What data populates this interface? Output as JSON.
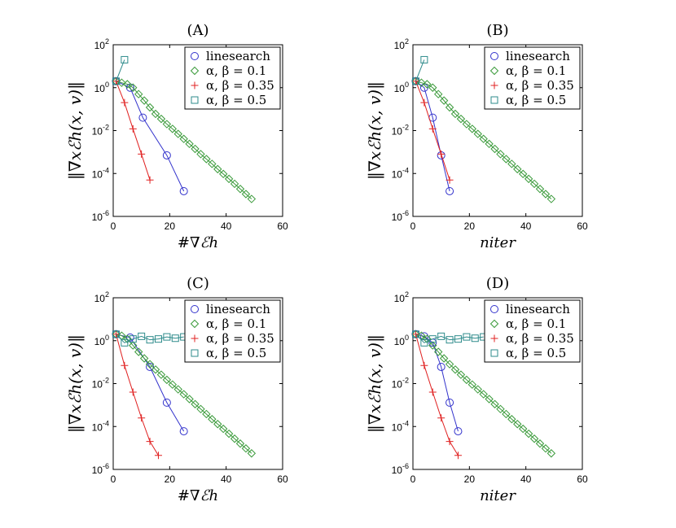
{
  "chart_data": [
    {
      "type": "line",
      "title": "(A)",
      "xlabel": "#∇ℰh",
      "ylabel": "‖∇xℰh(x, v)‖",
      "xlim": [
        0,
        60
      ],
      "ylim_log10": [
        -6,
        2
      ],
      "xticks": [
        "0",
        "20",
        "40",
        "60"
      ],
      "yticks": [
        "10^-6",
        "10^-4",
        "10^-2",
        "10^0",
        "10^2"
      ],
      "legend": "top-right",
      "series": [
        {
          "name": "linesearch",
          "marker": "circle",
          "color": "#3333cc",
          "x": [
            1,
            6,
            10.5,
            19,
            25
          ],
          "y": [
            2.0,
            1.0,
            0.04,
            0.0007,
            1.5e-05
          ]
        },
        {
          "name": "α, β = 0.1",
          "marker": "diamond",
          "color": "#3a9a3a",
          "x": [
            1,
            3,
            5,
            7,
            9,
            11,
            13,
            15,
            17,
            19,
            21,
            23,
            25,
            27,
            29,
            31,
            33,
            35,
            37,
            39,
            41,
            43,
            45,
            47,
            49
          ],
          "y": [
            2.0,
            1.7,
            1.45,
            1.0,
            0.5,
            0.25,
            0.12,
            0.06,
            0.035,
            0.02,
            0.012,
            0.007,
            0.0041,
            0.0024,
            0.0014,
            0.0008,
            0.00047,
            0.00028,
            0.00016,
            9.5e-05,
            5.6e-05,
            3.3e-05,
            1.9e-05,
            1.1e-05,
            6.5e-06
          ]
        },
        {
          "name": "α, β = 0.35",
          "marker": "plus",
          "color": "#e02020",
          "x": [
            1,
            4,
            7,
            10,
            13
          ],
          "y": [
            2.0,
            0.2,
            0.012,
            0.0008,
            5e-05
          ]
        },
        {
          "name": "α, β = 0.5",
          "marker": "square",
          "color": "#2e8b8b",
          "x": [
            1,
            4
          ],
          "y": [
            2.0,
            20
          ]
        }
      ]
    },
    {
      "type": "line",
      "title": "(B)",
      "xlabel": "niter",
      "ylabel": "‖∇xℰh(x, v)‖",
      "xlim": [
        0,
        60
      ],
      "ylim_log10": [
        -6,
        2
      ],
      "xticks": [
        "0",
        "20",
        "40",
        "60"
      ],
      "yticks": [
        "10^-6",
        "10^-4",
        "10^-2",
        "10^0",
        "10^2"
      ],
      "legend": "top-right",
      "series": [
        {
          "name": "linesearch",
          "marker": "circle",
          "color": "#3333cc",
          "x": [
            1,
            4,
            7,
            10,
            13
          ],
          "y": [
            2.0,
            1.0,
            0.04,
            0.0007,
            1.5e-05
          ]
        },
        {
          "name": "α, β = 0.1",
          "marker": "diamond",
          "color": "#3a9a3a",
          "x": [
            1,
            3,
            5,
            7,
            9,
            11,
            13,
            15,
            17,
            19,
            21,
            23,
            25,
            27,
            29,
            31,
            33,
            35,
            37,
            39,
            41,
            43,
            45,
            47,
            49
          ],
          "y": [
            2.0,
            1.7,
            1.45,
            1.0,
            0.5,
            0.25,
            0.12,
            0.06,
            0.035,
            0.02,
            0.012,
            0.007,
            0.0041,
            0.0024,
            0.0014,
            0.0008,
            0.00047,
            0.00028,
            0.00016,
            9.5e-05,
            5.6e-05,
            3.3e-05,
            1.9e-05,
            1.1e-05,
            6.5e-06
          ]
        },
        {
          "name": "α, β = 0.35",
          "marker": "plus",
          "color": "#e02020",
          "x": [
            1,
            4,
            7,
            10,
            13
          ],
          "y": [
            2.0,
            0.2,
            0.012,
            0.0008,
            5e-05
          ]
        },
        {
          "name": "α, β = 0.5",
          "marker": "square",
          "color": "#2e8b8b",
          "x": [
            1,
            4
          ],
          "y": [
            2.0,
            20
          ]
        }
      ]
    },
    {
      "type": "line",
      "title": "(C)",
      "xlabel": "#∇ℰh",
      "ylabel": "‖∇xℰh(x, v)‖",
      "xlim": [
        0,
        60
      ],
      "ylim_log10": [
        -6,
        2
      ],
      "xticks": [
        "0",
        "20",
        "40",
        "60"
      ],
      "yticks": [
        "10^-6",
        "10^-4",
        "10^-2",
        "10^0",
        "10^2"
      ],
      "legend": "top-right",
      "series": [
        {
          "name": "linesearch",
          "marker": "circle",
          "color": "#3333cc",
          "x": [
            1,
            6,
            13,
            19,
            25
          ],
          "y": [
            2.0,
            1.4,
            0.06,
            0.0013,
            6e-05
          ]
        },
        {
          "name": "α, β = 0.1",
          "marker": "diamond",
          "color": "#3a9a3a",
          "x": [
            1,
            3,
            5,
            7,
            9,
            11,
            13,
            15,
            17,
            19,
            21,
            23,
            25,
            27,
            29,
            31,
            33,
            35,
            37,
            39,
            41,
            43,
            45,
            47,
            49
          ],
          "y": [
            2.0,
            1.7,
            1.2,
            0.6,
            0.3,
            0.15,
            0.08,
            0.045,
            0.026,
            0.015,
            0.009,
            0.0054,
            0.0032,
            0.0019,
            0.0011,
            0.00065,
            0.00038,
            0.00022,
            0.00013,
            7.8e-05,
            4.6e-05,
            2.7e-05,
            1.6e-05,
            9.5e-06,
            5.6e-06
          ]
        },
        {
          "name": "α, β = 0.35",
          "marker": "plus",
          "color": "#e02020",
          "x": [
            1,
            4,
            7,
            10,
            13,
            16
          ],
          "y": [
            2.0,
            0.07,
            0.004,
            0.00025,
            2e-05,
            4.5e-06
          ]
        },
        {
          "name": "α, β = 0.5",
          "marker": "square",
          "color": "#2e8b8b",
          "x": [
            1,
            4,
            7,
            10,
            13,
            16,
            19,
            22,
            25
          ],
          "y": [
            2.0,
            0.8,
            1.2,
            1.6,
            1.1,
            1.2,
            1.5,
            1.3,
            1.5
          ]
        }
      ]
    },
    {
      "type": "line",
      "title": "(D)",
      "xlabel": "niter",
      "ylabel": "‖∇xℰh(x, v)‖",
      "xlim": [
        0,
        60
      ],
      "ylim_log10": [
        -6,
        2
      ],
      "xticks": [
        "0",
        "20",
        "40",
        "60"
      ],
      "yticks": [
        "10^-6",
        "10^-4",
        "10^-2",
        "10^0",
        "10^2"
      ],
      "legend": "top-right",
      "series": [
        {
          "name": "linesearch",
          "marker": "circle",
          "color": "#3333cc",
          "x": [
            1,
            4,
            7,
            10,
            13,
            16
          ],
          "y": [
            2.0,
            1.6,
            0.8,
            0.06,
            0.0013,
            6e-05
          ]
        },
        {
          "name": "α, β = 0.1",
          "marker": "diamond",
          "color": "#3a9a3a",
          "x": [
            1,
            3,
            5,
            7,
            9,
            11,
            13,
            15,
            17,
            19,
            21,
            23,
            25,
            27,
            29,
            31,
            33,
            35,
            37,
            39,
            41,
            43,
            45,
            47,
            49
          ],
          "y": [
            2.0,
            1.7,
            1.2,
            0.6,
            0.3,
            0.15,
            0.08,
            0.045,
            0.026,
            0.015,
            0.009,
            0.0054,
            0.0032,
            0.0019,
            0.0011,
            0.00065,
            0.00038,
            0.00022,
            0.00013,
            7.8e-05,
            4.6e-05,
            2.7e-05,
            1.6e-05,
            9.5e-06,
            5.6e-06
          ]
        },
        {
          "name": "α, β = 0.35",
          "marker": "plus",
          "color": "#e02020",
          "x": [
            1,
            4,
            7,
            10,
            13,
            16
          ],
          "y": [
            2.0,
            0.07,
            0.004,
            0.00025,
            2e-05,
            4.5e-06
          ]
        },
        {
          "name": "α, β = 0.5",
          "marker": "square",
          "color": "#2e8b8b",
          "x": [
            1,
            4,
            7,
            10,
            13,
            16,
            19,
            22,
            25
          ],
          "y": [
            2.0,
            0.8,
            1.2,
            1.6,
            1.1,
            1.2,
            1.5,
            1.3,
            1.5
          ]
        }
      ]
    }
  ]
}
